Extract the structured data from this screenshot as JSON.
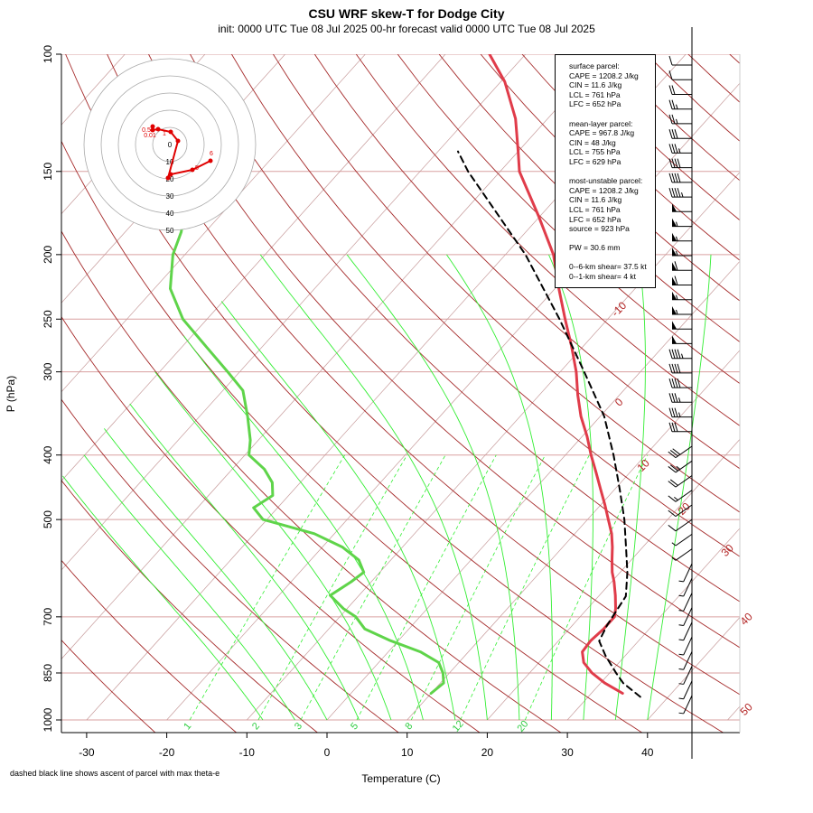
{
  "title": "CSU WRF skew-T for Dodge City",
  "subtitle": "init: 0000 UTC Tue 08 Jul 2025     00-hr forecast valid 0000 UTC Tue 08 Jul 2025",
  "footnote": "dashed black line shows ascent of parcel with max theta-e",
  "chart_data": {
    "type": "line",
    "title": "CSU WRF skew-T for Dodge City",
    "xlabel": "Temperature (C)",
    "ylabel": "P (hPa)",
    "x_ticks": [
      "-30",
      "-20",
      "-10",
      "0",
      "10",
      "20",
      "30",
      "40"
    ],
    "y_ticks": [
      "100",
      "150",
      "200",
      "250",
      "300",
      "400",
      "500",
      "700",
      "850",
      "1000"
    ],
    "pressure_levels": [
      100,
      150,
      200,
      250,
      300,
      400,
      500,
      700,
      850,
      1000
    ],
    "isotherm_labels": [
      "-10",
      "0",
      "10",
      "20",
      "30",
      "40",
      "50"
    ],
    "mixing_ratio_labels": [
      "1",
      "2",
      "3",
      "5",
      "8",
      "12",
      "20"
    ],
    "colors": {
      "temperature": "#e03c4a",
      "dewpoint": "#5fd44a",
      "parcel": "#000000",
      "isotherm": "#a52a2a",
      "mixing_ratio": "#33ee33",
      "hodograph": "#e00000"
    },
    "series": [
      {
        "name": "temperature",
        "points": [
          [
            912,
            33.9
          ],
          [
            880,
            30.5
          ],
          [
            850,
            27.8
          ],
          [
            820,
            25.6
          ],
          [
            790,
            24.2
          ],
          [
            760,
            24.0
          ],
          [
            730,
            24.3
          ],
          [
            700,
            24.3
          ],
          [
            680,
            23.5
          ],
          [
            650,
            22.0
          ],
          [
            620,
            20.3
          ],
          [
            600,
            19.0
          ],
          [
            575,
            17.6
          ],
          [
            550,
            16.2
          ],
          [
            525,
            14.6
          ],
          [
            500,
            12.6
          ],
          [
            475,
            10.5
          ],
          [
            450,
            8.2
          ],
          [
            425,
            5.8
          ],
          [
            400,
            3.2
          ],
          [
            375,
            0.6
          ],
          [
            350,
            -2.4
          ],
          [
            325,
            -5.2
          ],
          [
            300,
            -8.0
          ],
          [
            275,
            -11.4
          ],
          [
            250,
            -15.3
          ],
          [
            225,
            -19.5
          ],
          [
            200,
            -24.0
          ],
          [
            175,
            -30.2
          ],
          [
            150,
            -37.6
          ],
          [
            140,
            -40.0
          ],
          [
            125,
            -44.0
          ],
          [
            110,
            -49.5
          ],
          [
            100,
            -54.5
          ]
        ]
      },
      {
        "name": "dewpoint",
        "points": [
          [
            912,
            10.0
          ],
          [
            880,
            10.4
          ],
          [
            850,
            9.2
          ],
          [
            820,
            7.5
          ],
          [
            790,
            4.0
          ],
          [
            760,
            -1.0
          ],
          [
            730,
            -5.5
          ],
          [
            700,
            -8.0
          ],
          [
            680,
            -10.5
          ],
          [
            650,
            -13.6
          ],
          [
            620,
            -12.5
          ],
          [
            600,
            -12.0
          ],
          [
            575,
            -14.0
          ],
          [
            550,
            -17.5
          ],
          [
            525,
            -22.5
          ],
          [
            500,
            -30.5
          ],
          [
            480,
            -33.0
          ],
          [
            460,
            -32.0
          ],
          [
            440,
            -33.5
          ],
          [
            420,
            -36.0
          ],
          [
            400,
            -39.5
          ],
          [
            380,
            -41.0
          ],
          [
            350,
            -44.0
          ],
          [
            320,
            -47.5
          ],
          [
            300,
            -51.5
          ],
          [
            275,
            -57.0
          ],
          [
            250,
            -63.0
          ],
          [
            225,
            -68.0
          ],
          [
            200,
            -71.5
          ],
          [
            185,
            -73.0
          ],
          [
            175,
            -74.5
          ]
        ]
      },
      {
        "name": "parcel",
        "points": [
          [
            923,
            36.5
          ],
          [
            880,
            32.8
          ],
          [
            850,
            30.8
          ],
          [
            800,
            27.5
          ],
          [
            761,
            25.1
          ],
          [
            720,
            24.3
          ],
          [
            652,
            23.4
          ],
          [
            600,
            20.9
          ],
          [
            550,
            17.9
          ],
          [
            500,
            14.6
          ],
          [
            450,
            10.6
          ],
          [
            400,
            6.0
          ],
          [
            350,
            0.5
          ],
          [
            300,
            -7.0
          ],
          [
            250,
            -16.0
          ],
          [
            200,
            -27.5
          ],
          [
            150,
            -44.0
          ],
          [
            140,
            -47.5
          ]
        ]
      }
    ],
    "wind_barbs_kt": [
      10,
      10,
      20,
      25,
      25,
      30,
      35,
      40,
      40,
      45,
      50,
      55,
      55,
      55,
      60,
      60,
      55,
      55,
      50,
      50,
      45,
      40,
      40,
      35,
      35,
      30,
      30,
      25,
      20,
      15,
      10,
      10,
      5,
      5,
      5,
      5,
      5,
      5,
      5,
      5,
      5,
      5,
      5,
      5
    ],
    "hodograph": {
      "ring_labels": [
        "0",
        "10",
        "20",
        "30",
        "40",
        "50"
      ],
      "point_labels": [
        "0.5",
        "0.01",
        "1",
        "2",
        "5",
        "6"
      ]
    },
    "legend": {
      "position": "top-right"
    }
  },
  "info": [
    {
      "header": "surface parcel:",
      "lines": [
        "CAPE = 1208.2 J/kg",
        "CIN = 11.6 J/kg",
        "LCL = 761 hPa",
        "LFC = 652 hPa"
      ]
    },
    {
      "header": "mean-layer parcel:",
      "lines": [
        "CAPE = 967.8 J/kg",
        "CIN = 48 J/kg",
        "LCL = 755 hPa",
        "LFC = 629 hPa"
      ]
    },
    {
      "header": "most-unstable parcel:",
      "lines": [
        "CAPE = 1208.2 J/kg",
        "CIN = 11.6 J/kg",
        "LCL = 761 hPa",
        "LFC = 652 hPa",
        "source = 923 hPa"
      ]
    },
    {
      "header": "PW =  30.6 mm",
      "lines": []
    },
    {
      "header": "0--6-km shear= 37.5 kt",
      "lines": [
        "0--1-km shear= 4 kt"
      ]
    }
  ]
}
